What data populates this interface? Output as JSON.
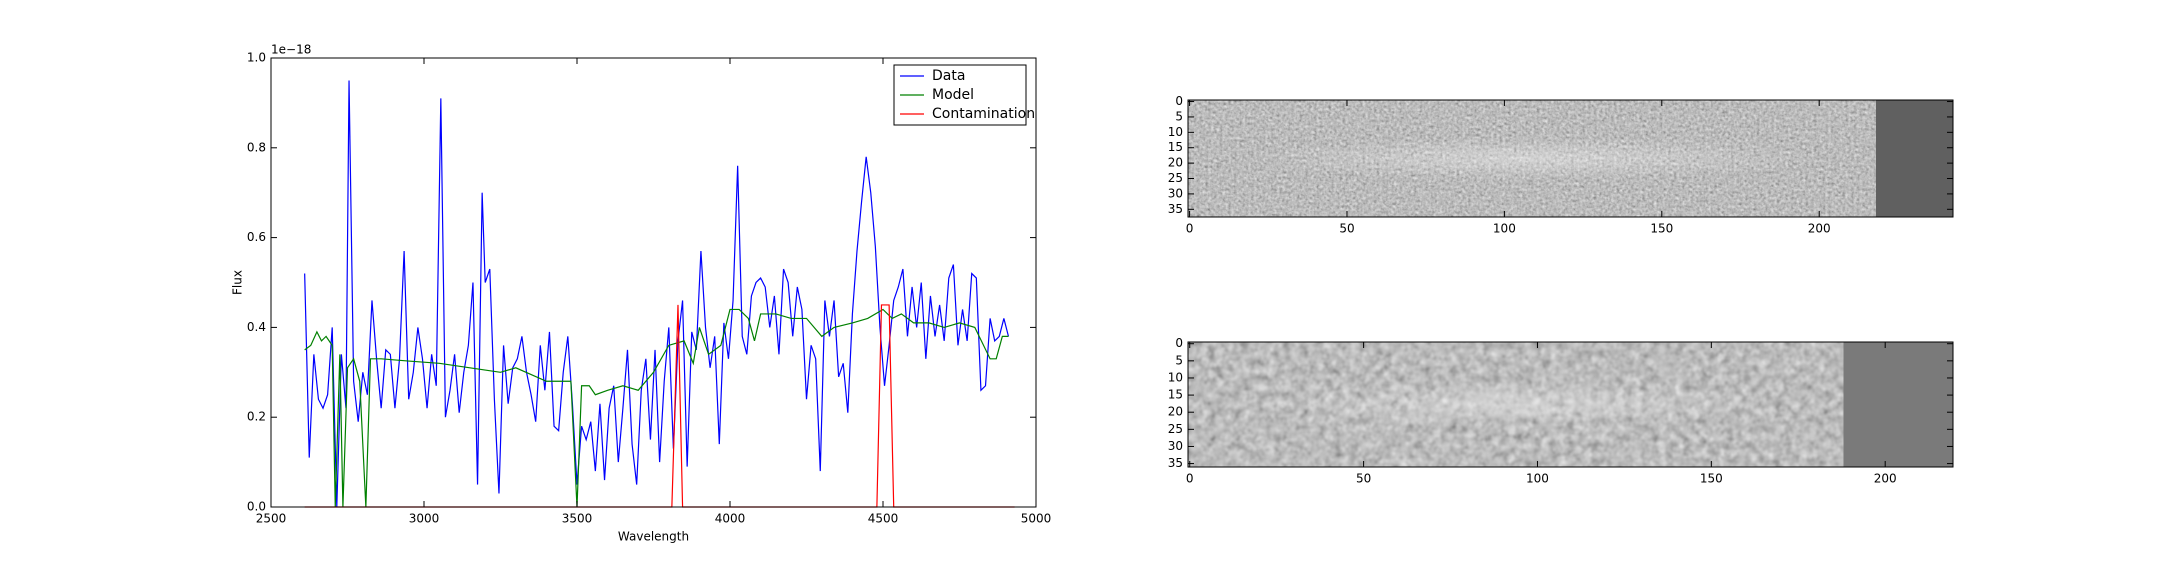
{
  "chart_data": [
    {
      "type": "line",
      "xlabel": "Wavelength",
      "ylabel": "Flux",
      "offset_text": "1e−18",
      "xlim": [
        2500,
        5000
      ],
      "xticks": [
        2500,
        3000,
        3500,
        4000,
        4500,
        5000
      ],
      "ylim": [
        0,
        1.0
      ],
      "yticks": [
        {
          "value": 0,
          "label": "0.0"
        },
        0.2,
        0.4,
        0.6,
        0.8,
        {
          "value": 1.0,
          "label": "1.0"
        }
      ],
      "legend": "upper right",
      "series": [
        {
          "name": "Data",
          "color": "#0000ff",
          "x": [
            2610,
            2625,
            2640,
            2655,
            2670,
            2685,
            2700,
            2715,
            2730,
            2745,
            2755,
            2770,
            2785,
            2800,
            2815,
            2830,
            2845,
            2860,
            2875,
            2890,
            2905,
            2920,
            2935,
            2950,
            2965,
            2980,
            2995,
            3010,
            3025,
            3040,
            3055,
            3070,
            3085,
            3100,
            3115,
            3130,
            3145,
            3160,
            3175,
            3190,
            3200,
            3215,
            3230,
            3245,
            3260,
            3275,
            3290,
            3305,
            3320,
            3335,
            3350,
            3365,
            3380,
            3395,
            3410,
            3425,
            3440,
            3455,
            3470,
            3485,
            3500,
            3515,
            3530,
            3545,
            3560,
            3575,
            3590,
            3605,
            3620,
            3635,
            3650,
            3665,
            3680,
            3695,
            3710,
            3725,
            3740,
            3755,
            3770,
            3785,
            3800,
            3815,
            3830,
            3845,
            3860,
            3875,
            3890,
            3905,
            3920,
            3935,
            3950,
            3965,
            3980,
            3995,
            4010,
            4025,
            4040,
            4055,
            4070,
            4085,
            4100,
            4115,
            4130,
            4145,
            4160,
            4175,
            4190,
            4205,
            4220,
            4235,
            4250,
            4265,
            4280,
            4295,
            4310,
            4325,
            4340,
            4355,
            4370,
            4385,
            4400,
            4415,
            4430,
            4445,
            4460,
            4475,
            4490,
            4505,
            4520,
            4535,
            4550,
            4565,
            4580,
            4595,
            4610,
            4625,
            4640,
            4655,
            4670,
            4685,
            4700,
            4715,
            4730,
            4745,
            4760,
            4775,
            4790,
            4805,
            4820,
            4835,
            4850,
            4865,
            4880,
            4895,
            4910
          ],
          "values": [
            0.52,
            0.11,
            0.34,
            0.24,
            0.22,
            0.25,
            0.4,
            0.0,
            0.34,
            0.22,
            0.95,
            0.28,
            0.19,
            0.3,
            0.25,
            0.46,
            0.33,
            0.22,
            0.35,
            0.34,
            0.22,
            0.33,
            0.57,
            0.24,
            0.3,
            0.4,
            0.33,
            0.22,
            0.34,
            0.27,
            0.91,
            0.2,
            0.26,
            0.34,
            0.21,
            0.3,
            0.36,
            0.5,
            0.05,
            0.7,
            0.5,
            0.53,
            0.24,
            0.03,
            0.36,
            0.23,
            0.31,
            0.33,
            0.38,
            0.3,
            0.25,
            0.19,
            0.36,
            0.26,
            0.39,
            0.18,
            0.17,
            0.3,
            0.38,
            0.23,
            0.05,
            0.18,
            0.15,
            0.19,
            0.08,
            0.23,
            0.06,
            0.22,
            0.27,
            0.1,
            0.22,
            0.35,
            0.14,
            0.05,
            0.26,
            0.33,
            0.15,
            0.35,
            0.1,
            0.28,
            0.4,
            0.13,
            0.37,
            0.46,
            0.09,
            0.39,
            0.35,
            0.57,
            0.4,
            0.31,
            0.38,
            0.14,
            0.41,
            0.33,
            0.46,
            0.76,
            0.38,
            0.34,
            0.47,
            0.5,
            0.51,
            0.49,
            0.4,
            0.47,
            0.34,
            0.53,
            0.5,
            0.38,
            0.49,
            0.44,
            0.24,
            0.36,
            0.33,
            0.08,
            0.46,
            0.38,
            0.46,
            0.29,
            0.32,
            0.21,
            0.43,
            0.57,
            0.68,
            0.78,
            0.7,
            0.58,
            0.4,
            0.27,
            0.36,
            0.46,
            0.49,
            0.53,
            0.38,
            0.49,
            0.4,
            0.5,
            0.33,
            0.47,
            0.38,
            0.45,
            0.37,
            0.51,
            0.54,
            0.36,
            0.44,
            0.37,
            0.52,
            0.51,
            0.26,
            0.27,
            0.42,
            0.37,
            0.38,
            0.42,
            0.38
          ]
        },
        {
          "name": "Model",
          "color": "#008000",
          "x": [
            2610,
            2630,
            2650,
            2665,
            2680,
            2700,
            2710,
            2725,
            2735,
            2750,
            2770,
            2790,
            2810,
            2825,
            2860,
            2950,
            3050,
            3150,
            3250,
            3300,
            3400,
            3480,
            3500,
            3515,
            3540,
            3560,
            3600,
            3650,
            3700,
            3750,
            3800,
            3850,
            3880,
            3900,
            3930,
            3970,
            4000,
            4030,
            4060,
            4080,
            4100,
            4150,
            4200,
            4250,
            4300,
            4340,
            4400,
            4450,
            4500,
            4530,
            4560,
            4600,
            4650,
            4700,
            4750,
            4800,
            4850,
            4870,
            4890,
            4910
          ],
          "values": [
            0.35,
            0.36,
            0.39,
            0.37,
            0.38,
            0.36,
            0.0,
            0.34,
            0.0,
            0.31,
            0.33,
            0.28,
            0.0,
            0.33,
            0.33,
            0.325,
            0.32,
            0.31,
            0.3,
            0.31,
            0.28,
            0.28,
            0.0,
            0.27,
            0.27,
            0.25,
            0.26,
            0.27,
            0.26,
            0.3,
            0.36,
            0.37,
            0.32,
            0.4,
            0.34,
            0.36,
            0.44,
            0.44,
            0.42,
            0.37,
            0.43,
            0.43,
            0.42,
            0.42,
            0.38,
            0.4,
            0.41,
            0.42,
            0.44,
            0.42,
            0.43,
            0.41,
            0.41,
            0.4,
            0.41,
            0.4,
            0.33,
            0.33,
            0.38,
            0.38
          ]
        },
        {
          "name": "Contamination",
          "color": "#ff0000",
          "x": [
            2610,
            3810,
            3830,
            3845,
            4480,
            4495,
            4520,
            4535,
            4930
          ],
          "values": [
            0,
            0,
            0.45,
            0,
            0,
            0.45,
            0.45,
            0,
            0
          ]
        }
      ]
    },
    {
      "type": "image",
      "xlim": [
        -0.5,
        242.5
      ],
      "ylim": [
        37.5,
        -0.5
      ],
      "xticks": [
        0,
        50,
        100,
        150,
        200
      ],
      "yticks": [
        0,
        5,
        10,
        15,
        20,
        25,
        30,
        35
      ]
    },
    {
      "type": "image",
      "xlim": [
        -0.5,
        219.5
      ],
      "ylim": [
        36,
        -0.5
      ],
      "xticks": [
        0,
        50,
        100,
        150,
        200
      ],
      "yticks": [
        0,
        5,
        10,
        15,
        20,
        25,
        30,
        35
      ]
    }
  ]
}
